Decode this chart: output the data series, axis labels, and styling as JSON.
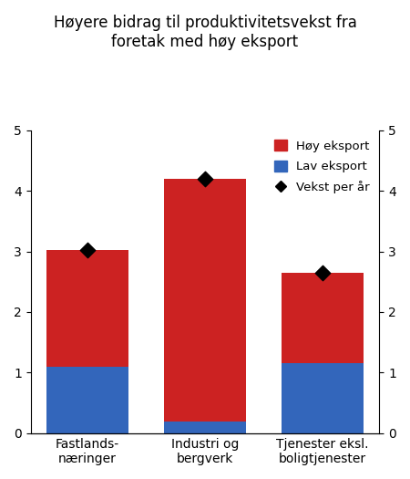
{
  "title_line1": "Høyere bidrag til produktivitetsvekst fra",
  "title_line2": "foretak med høy eksport",
  "categories": [
    "Fastlands-\nnæringer",
    "Industri og\nbergverk",
    "Tjenester eksl.\nboligtjenester"
  ],
  "lav_eksport": [
    1.1,
    0.2,
    1.15
  ],
  "hoy_eksport": [
    1.93,
    4.0,
    1.5
  ],
  "vekst_per_ar": [
    3.03,
    4.2,
    2.65
  ],
  "bar_color_hoy": "#CC2222",
  "bar_color_lav": "#3366BB",
  "ylim": [
    0,
    5
  ],
  "yticks": [
    0,
    1,
    2,
    3,
    4,
    5
  ],
  "legend_labels": [
    "Høy eksport",
    "Lav eksport",
    "Vekst per år"
  ],
  "bar_width": 0.7,
  "background_color": "#FFFFFF"
}
